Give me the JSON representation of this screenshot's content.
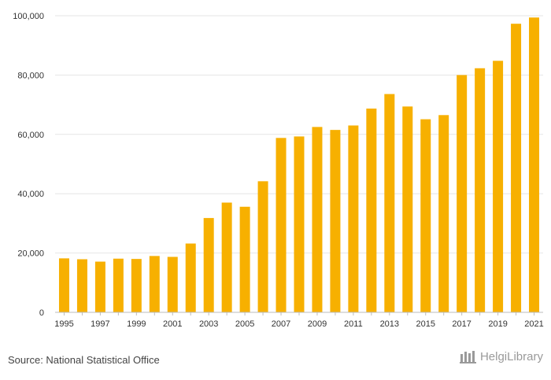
{
  "chart_data": {
    "type": "bar",
    "title": "",
    "xlabel": "",
    "ylabel": "",
    "categories": [
      "1995",
      "1996",
      "1997",
      "1998",
      "1999",
      "2000",
      "2001",
      "2002",
      "2003",
      "2004",
      "2005",
      "2006",
      "2007",
      "2008",
      "2009",
      "2010",
      "2011",
      "2012",
      "2013",
      "2014",
      "2015",
      "2016",
      "2017",
      "2018",
      "2019",
      "2020",
      "2021"
    ],
    "x_tick_labels": [
      "1995",
      "1997",
      "1999",
      "2001",
      "2003",
      "2005",
      "2007",
      "2009",
      "2011",
      "2013",
      "2015",
      "2017",
      "2019",
      "2021"
    ],
    "values": [
      18200,
      17900,
      17100,
      18100,
      18000,
      19000,
      18700,
      23200,
      31800,
      37000,
      35600,
      44200,
      58800,
      59300,
      62500,
      61500,
      63000,
      68700,
      73600,
      69400,
      65100,
      66500,
      80000,
      82300,
      84800,
      97300,
      99400
    ],
    "ylim": [
      0,
      100000
    ],
    "y_ticks": [
      0,
      20000,
      40000,
      60000,
      80000,
      100000
    ],
    "y_tick_labels": [
      "0",
      "20,000",
      "40,000",
      "60,000",
      "80,000",
      "100,000"
    ],
    "grid": true,
    "bar_color": "#f7b000",
    "grid_color": "#e6e6e6"
  },
  "footer": {
    "source": "Source: National Statistical Office",
    "logo_text": "HelgiLibrary"
  }
}
